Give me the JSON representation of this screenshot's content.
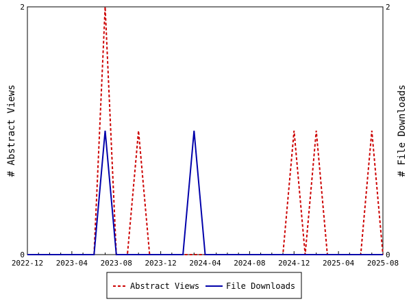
{
  "chart_data": {
    "type": "line",
    "x_type": "month",
    "x": [
      "2022-12",
      "2023-01",
      "2023-02",
      "2023-03",
      "2023-04",
      "2023-05",
      "2023-06",
      "2023-07",
      "2023-08",
      "2023-09",
      "2023-10",
      "2023-11",
      "2023-12",
      "2024-01",
      "2024-02",
      "2024-03",
      "2024-04",
      "2024-05",
      "2024-06",
      "2024-07",
      "2024-08",
      "2024-09",
      "2024-10",
      "2024-11",
      "2024-12",
      "2025-01",
      "2025-02",
      "2025-03",
      "2025-04",
      "2025-05",
      "2025-06",
      "2025-07",
      "2025-08"
    ],
    "xlim": [
      "2022-12",
      "2025-08"
    ],
    "x_ticks": [
      "2022-12",
      "2023-04",
      "2023-08",
      "2023-12",
      "2024-04",
      "2024-08",
      "2024-12",
      "2025-04",
      "2025-08"
    ],
    "series": [
      {
        "name": "Abstract Views",
        "axis": "left",
        "color": "#cc0000",
        "dash": "dashed",
        "values": [
          0,
          0,
          0,
          0,
          0,
          0,
          0,
          2,
          0,
          0,
          1,
          0,
          0,
          0,
          0,
          0,
          0,
          0,
          0,
          0,
          0,
          0,
          0,
          0,
          1,
          0,
          1,
          0,
          0,
          0,
          0,
          1,
          0
        ]
      },
      {
        "name": "File Downloads",
        "axis": "right",
        "color": "#0000aa",
        "dash": "solid",
        "values": [
          0,
          0,
          0,
          0,
          0,
          0,
          0,
          1,
          0,
          0,
          0,
          0,
          0,
          0,
          0,
          1,
          0,
          0,
          0,
          0,
          0,
          0,
          0,
          0,
          0,
          0,
          0,
          0,
          0,
          0,
          0,
          0,
          0
        ]
      }
    ],
    "ylabel": "# Abstract Views",
    "y2label": "# File Downloads",
    "ylim": [
      0,
      2
    ],
    "y2lim": [
      0,
      2
    ],
    "y_ticks": [
      0,
      2
    ],
    "y2_ticks": [
      0,
      2
    ],
    "grid": false,
    "legend_position": "bottom-center"
  }
}
